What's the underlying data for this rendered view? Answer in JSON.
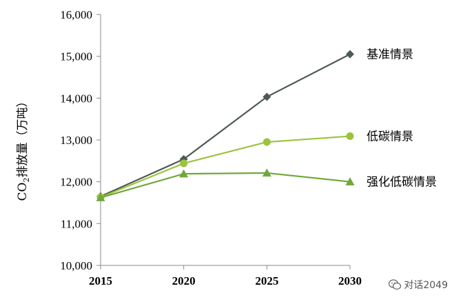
{
  "chart_data": {
    "type": "line",
    "x": [
      2015,
      2020,
      2025,
      2030
    ],
    "ylim": [
      10000,
      16000
    ],
    "yticks": [
      10000,
      11000,
      12000,
      13000,
      14000,
      15000,
      16000
    ],
    "ytick_labels": [
      "10,000",
      "11,000",
      "12,000",
      "13,000",
      "14,000",
      "15,000",
      "16,000"
    ],
    "xtick_labels": [
      "2015",
      "2020",
      "2025",
      "2030"
    ],
    "ylabel_main": "CO",
    "ylabel_sub": "2",
    "ylabel_rest": "排放量（万吨）",
    "grid": false,
    "series": [
      {
        "name": "基准情景",
        "values": [
          11650,
          12540,
          14030,
          15050
        ],
        "color": "#4f5a54",
        "marker": "diamond"
      },
      {
        "name": "低碳情景",
        "values": [
          11630,
          12440,
          12950,
          13090
        ],
        "color": "#9ac43c",
        "marker": "circle"
      },
      {
        "name": "强化低碳情景",
        "values": [
          11620,
          12190,
          12210,
          12000
        ],
        "color": "#6fa83a",
        "marker": "triangle"
      }
    ]
  },
  "watermark": {
    "text": "对话2049",
    "icon": "wechat-icon"
  }
}
